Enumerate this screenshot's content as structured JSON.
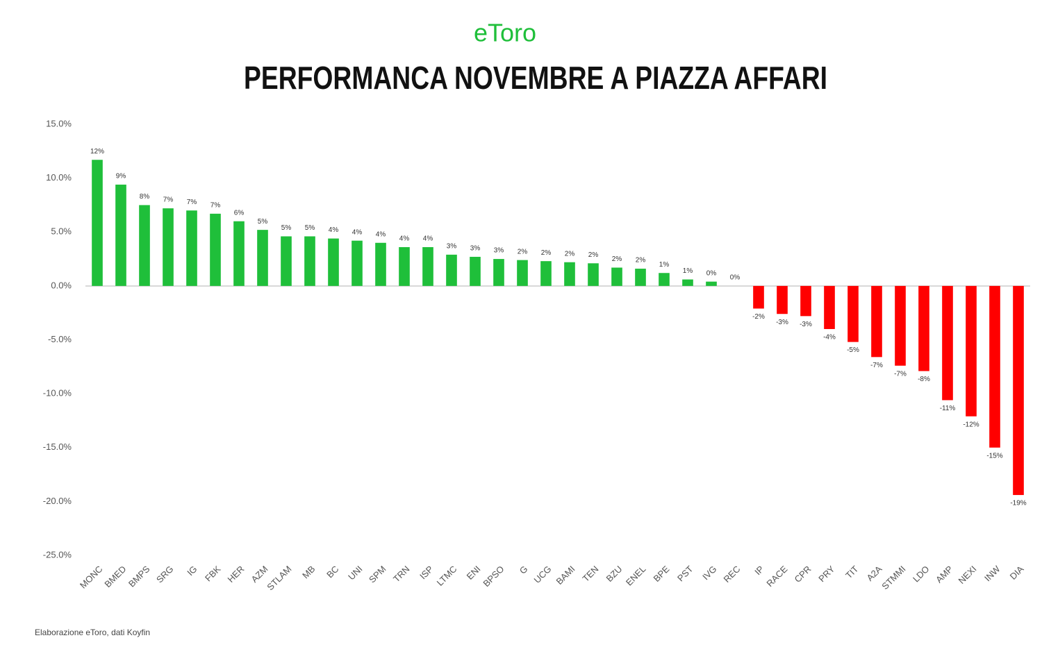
{
  "chart_data": {
    "type": "bar",
    "logo": "eToro",
    "title": "PERFORMANCA NOVEMBRE A PIAZZA AFFARI",
    "footnote": "Elaborazione eToro, dati Koyfin",
    "categories": [
      "MONC",
      "BMED",
      "BMPS",
      "SRG",
      "IG",
      "FBK",
      "HER",
      "AZM",
      "STLAM",
      "MB",
      "BC",
      "UNI",
      "SPM",
      "TRN",
      "ISP",
      "LTMC",
      "ENI",
      "BPSO",
      "G",
      "UCG",
      "BAMI",
      "TEN",
      "BZU",
      "ENEL",
      "BPE",
      "PST",
      "IVG",
      "REC",
      "IP",
      "RACE",
      "CPR",
      "PRY",
      "TIT",
      "A2A",
      "STMMI",
      "LDO",
      "AMP",
      "NEXI",
      "INW",
      "DIA"
    ],
    "values": [
      11.7,
      9.4,
      7.5,
      7.2,
      7.0,
      6.7,
      6.0,
      5.2,
      4.6,
      4.6,
      4.4,
      4.2,
      4.0,
      3.6,
      3.6,
      2.9,
      2.7,
      2.5,
      2.4,
      2.3,
      2.2,
      2.1,
      1.7,
      1.6,
      1.2,
      0.6,
      0.4,
      0,
      -2.1,
      -2.6,
      -2.8,
      -4.0,
      -5.2,
      -6.6,
      -7.4,
      -7.9,
      -10.6,
      -12.1,
      -15.0,
      -19.4
    ],
    "value_labels": [
      "12%",
      "9%",
      "8%",
      "7%",
      "7%",
      "7%",
      "6%",
      "5%",
      "5%",
      "5%",
      "4%",
      "4%",
      "4%",
      "4%",
      "4%",
      "3%",
      "3%",
      "3%",
      "2%",
      "2%",
      "2%",
      "2%",
      "2%",
      "2%",
      "1%",
      "1%",
      "0%",
      "0%",
      "-2%",
      "-3%",
      "-3%",
      "-4%",
      "-5%",
      "-7%",
      "-7%",
      "-8%",
      "-11%",
      "-12%",
      "-15%",
      "-19%"
    ],
    "positive_color": "#1fbf3a",
    "negative_color": "#ff0000",
    "ylim": [
      -25,
      15
    ],
    "yticks": [
      {
        "value": 15,
        "label": "15.0%"
      },
      {
        "value": 10,
        "label": "10.0%"
      },
      {
        "value": 5,
        "label": "5.0%"
      },
      {
        "value": 0,
        "label": "0.0%"
      },
      {
        "value": -5,
        "label": "-5.0%"
      },
      {
        "value": -10,
        "label": "-10.0%"
      },
      {
        "value": -15,
        "label": "-15.0%"
      },
      {
        "value": -20,
        "label": "-20.0%"
      },
      {
        "value": -25,
        "label": "-25.0%"
      }
    ],
    "grid": false
  }
}
